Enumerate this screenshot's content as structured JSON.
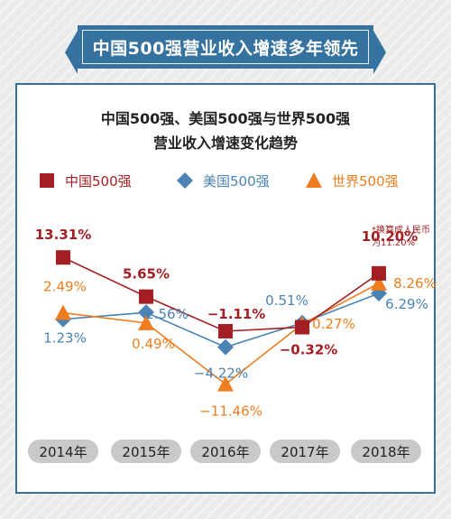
{
  "banner": {
    "title": "中国500强营业收入增速多年领先"
  },
  "chart_data": {
    "type": "line",
    "title_lines": [
      "中国500强、美国500强与世界500强",
      "营业收入增速变化趋势"
    ],
    "categories": [
      "2014年",
      "2015年",
      "2016年",
      "2017年",
      "2018年"
    ],
    "ylim": [
      -14,
      16
    ],
    "series": [
      {
        "name": "中国500强",
        "color": "#a31f24",
        "marker": "square",
        "values": [
          13.31,
          5.65,
          -1.11,
          -0.32,
          10.2
        ],
        "labels": [
          "13.31%",
          "5.65%",
          "−1.11%",
          "−0.32%",
          "10.20%"
        ]
      },
      {
        "name": "美国500强",
        "color": "#4a83b4",
        "marker": "diamond",
        "values": [
          1.23,
          2.56,
          -4.22,
          0.51,
          6.29
        ],
        "labels": [
          "1.23%",
          "2.56%",
          "−4.22%",
          "0.51%",
          "6.29%"
        ]
      },
      {
        "name": "世界500强",
        "color": "#ed7d1f",
        "marker": "triangle",
        "values": [
          2.49,
          0.49,
          -11.46,
          0.27,
          8.26
        ],
        "labels": [
          "2.49%",
          "0.49%",
          "−11.46%",
          "0.27%",
          "8.26%"
        ]
      }
    ],
    "annotation": {
      "lines": [
        "*换算成人民币",
        "为11.20%"
      ]
    }
  }
}
